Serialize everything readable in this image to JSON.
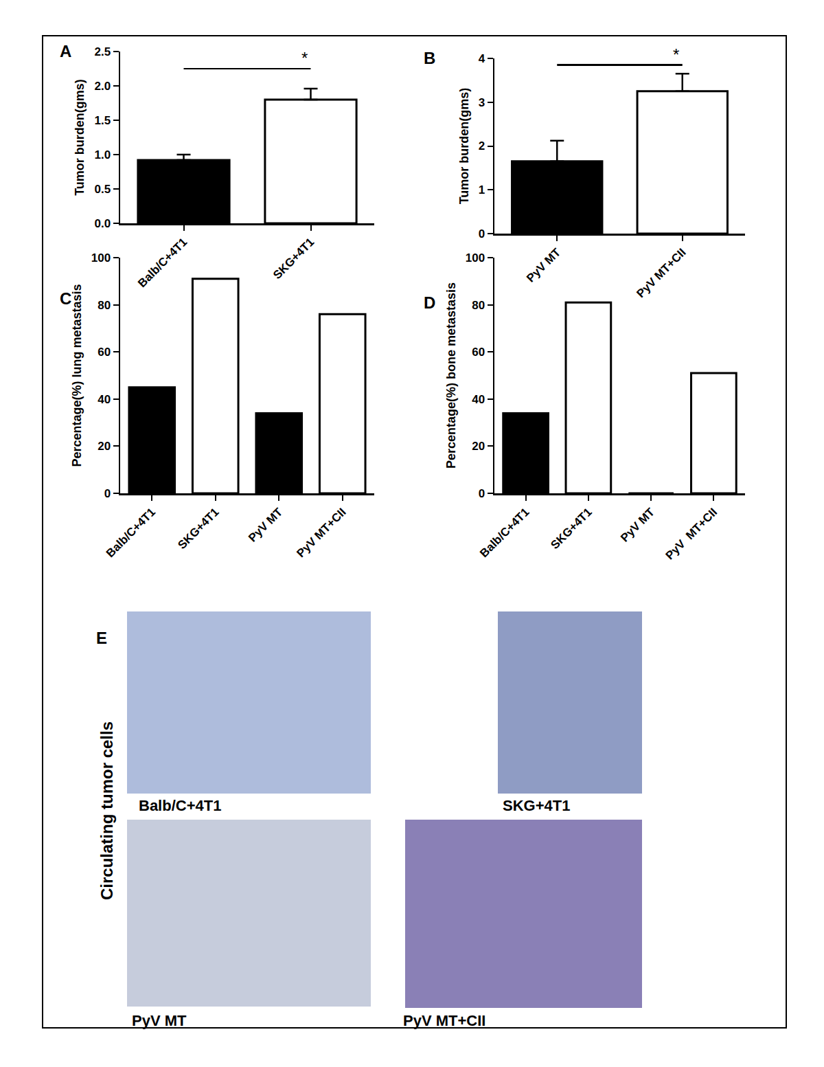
{
  "chart_data": [
    {
      "type": "bar",
      "title": "A",
      "y_label": "Tumor burden(gms)",
      "categories": [
        "Balb/C+4T1",
        "SKG+4T1"
      ],
      "values": [
        0.92,
        1.8
      ],
      "errors": [
        0.08,
        0.16
      ],
      "colors": [
        "#000000",
        "#ffffff"
      ],
      "ylim": [
        0,
        2.5
      ],
      "yticks": [
        {
          "value": 0,
          "label": "0.0"
        },
        {
          "value": 0.5,
          "label": "0.5"
        },
        {
          "value": 1,
          "label": "1.0"
        },
        {
          "value": 1.5,
          "label": "1.5"
        },
        {
          "value": 2,
          "label": "2.0"
        },
        {
          "value": 2.5,
          "label": "2.5"
        }
      ],
      "grid": false,
      "annotations": [
        {
          "text": "*",
          "from": "Balb/C+4T1",
          "to": "SKG+4T1",
          "y": 2.25
        }
      ]
    },
    {
      "type": "bar",
      "title": "B",
      "y_label": "Tumor burden(gms)",
      "categories": [
        "PyV MT",
        "PyV MT+CII"
      ],
      "values": [
        1.65,
        3.25
      ],
      "errors": [
        0.47,
        0.4
      ],
      "colors": [
        "#000000",
        "#ffffff"
      ],
      "ylim": [
        0,
        4
      ],
      "yticks": [
        0,
        1,
        2,
        3,
        4
      ],
      "grid": false,
      "annotations": [
        {
          "text": "*",
          "from": "PyV MT",
          "to": "PyV MT+CII",
          "y": 3.85
        }
      ]
    },
    {
      "type": "bar",
      "title": "C",
      "y_label": "Percentage(%) lung metastasis",
      "categories": [
        "Balb/C+4T1",
        "SKG+4T1",
        "PyV MT",
        "PyV MT+CII"
      ],
      "values": [
        45,
        91,
        34,
        76
      ],
      "colors": [
        "#000000",
        "#ffffff",
        "#000000",
        "#ffffff"
      ],
      "ylim": [
        0,
        100
      ],
      "yticks": [
        0,
        20,
        40,
        60,
        80,
        100
      ],
      "grid": false
    },
    {
      "type": "bar",
      "title": "D",
      "y_label": "Percentage(%) bone metastasis",
      "categories": [
        "Balb/C+4T1",
        "SKG+4T1",
        "PyV MT",
        "PyV  MT+CII"
      ],
      "values": [
        34,
        81,
        0,
        51
      ],
      "colors": [
        "#000000",
        "#ffffff",
        "#000000",
        "#ffffff"
      ],
      "ylim": [
        0,
        100
      ],
      "yticks": [
        0,
        20,
        40,
        60,
        80,
        100
      ],
      "grid": false
    }
  ],
  "panel_e": {
    "label": "E",
    "side_label": "Circulating tumor cells",
    "images": [
      "Balb/C+4T1",
      "SKG+4T1",
      "PyV MT",
      "PyV MT+CII"
    ]
  }
}
